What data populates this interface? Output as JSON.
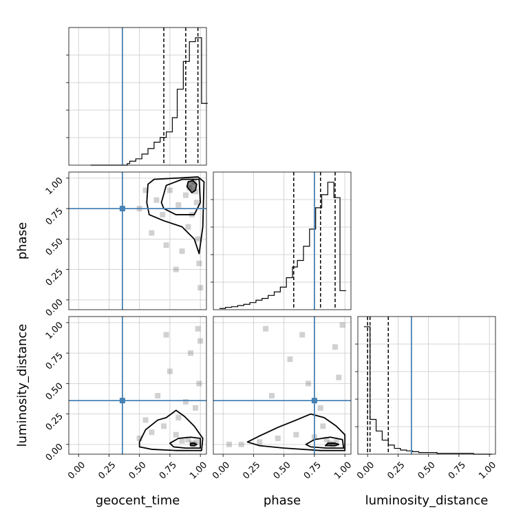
{
  "chart_data": {
    "type": "corner",
    "parameters": [
      "geocent_time",
      "phase",
      "luminosity_distance"
    ],
    "axis_labels": {
      "geocent_time": "geocent_time",
      "phase": "phase",
      "luminosity_distance": "luminosity_distance"
    },
    "range": [
      -0.08,
      1.05
    ],
    "ticks": [
      0.0,
      0.25,
      0.5,
      0.75,
      1.0
    ],
    "tick_labels": [
      "0.00",
      "0.25",
      "0.50",
      "0.75",
      "1.00"
    ],
    "truths": {
      "geocent_time": 0.36,
      "phase": 0.75,
      "luminosity_distance": 0.36
    },
    "truth_color": "#4682b4",
    "grid": true,
    "histograms": {
      "geocent_time": {
        "bin_edges": [
          0.1,
          0.2,
          0.3,
          0.4,
          0.42,
          0.47,
          0.52,
          0.57,
          0.62,
          0.67,
          0.72,
          0.77,
          0.81,
          0.86,
          0.91,
          0.96,
          1.01,
          1.06
        ],
        "counts": [
          0,
          0,
          0,
          2,
          5,
          8,
          14,
          21,
          29,
          35,
          42,
          60,
          96,
          131,
          156,
          161,
          78
        ],
        "quantiles": [
          0.7,
          0.88,
          0.98
        ]
      },
      "phase": {
        "bin_edges": [
          -0.03,
          0.02,
          0.07,
          0.12,
          0.17,
          0.22,
          0.27,
          0.32,
          0.37,
          0.42,
          0.47,
          0.52,
          0.57,
          0.61,
          0.66,
          0.71,
          0.76,
          0.81,
          0.86,
          0.91,
          0.96,
          1.01
        ],
        "counts": [
          2,
          4,
          5,
          7,
          9,
          12,
          16,
          19,
          24,
          30,
          38,
          54,
          72,
          83,
          107,
          136,
          172,
          194,
          215,
          189,
          32
        ],
        "quantiles": [
          0.58,
          0.8,
          0.92
        ]
      },
      "luminosity_distance": {
        "bin_edges": [
          -0.03,
          0.02,
          0.07,
          0.12,
          0.17,
          0.22,
          0.27,
          0.32,
          0.37,
          0.42,
          0.47,
          0.52,
          0.57,
          0.62,
          0.67,
          0.72,
          0.77,
          0.82,
          0.87,
          0.92,
          0.97,
          1.02
        ],
        "counts": [
          154,
          42,
          28,
          17,
          11,
          7,
          5,
          4,
          3,
          2,
          2,
          2,
          1,
          1,
          1,
          1,
          1,
          1,
          0,
          0,
          0
        ],
        "quantiles": [
          0.0,
          0.02,
          0.17
        ]
      }
    },
    "density_points": {
      "phase_vs_geocent_time": [
        [
          0.95,
          0.97
        ],
        [
          0.91,
          0.92
        ],
        [
          0.96,
          0.89
        ],
        [
          0.88,
          0.86
        ],
        [
          0.97,
          0.8
        ],
        [
          0.82,
          0.78
        ],
        [
          0.75,
          0.9
        ],
        [
          0.69,
          0.7
        ],
        [
          0.64,
          0.82
        ],
        [
          0.9,
          0.6
        ],
        [
          0.98,
          0.5
        ],
        [
          0.99,
          0.3
        ],
        [
          1.0,
          0.1
        ],
        [
          0.85,
          0.4
        ],
        [
          0.6,
          0.55
        ],
        [
          0.55,
          0.9
        ],
        [
          0.8,
          0.25
        ],
        [
          0.72,
          0.45
        ],
        [
          0.5,
          0.75
        ],
        [
          0.93,
          0.7
        ]
      ],
      "luminosity_distance_vs_geocent_time": [
        [
          0.95,
          0.0
        ],
        [
          0.93,
          0.01
        ],
        [
          0.97,
          0.02
        ],
        [
          0.9,
          0.04
        ],
        [
          0.85,
          0.03
        ],
        [
          0.8,
          0.08
        ],
        [
          0.7,
          0.15
        ],
        [
          0.6,
          0.1
        ],
        [
          0.99,
          0.5
        ],
        [
          0.98,
          0.95
        ],
        [
          0.88,
          0.35
        ],
        [
          0.75,
          0.6
        ],
        [
          0.65,
          0.4
        ],
        [
          0.55,
          0.2
        ],
        [
          0.92,
          0.75
        ],
        [
          0.82,
          0.22
        ],
        [
          1.0,
          0.85
        ],
        [
          0.72,
          0.9
        ],
        [
          0.5,
          0.05
        ],
        [
          0.96,
          0.3
        ]
      ],
      "luminosity_distance_vs_phase": [
        [
          0.9,
          0.0
        ],
        [
          0.88,
          0.01
        ],
        [
          0.93,
          0.02
        ],
        [
          0.85,
          0.04
        ],
        [
          0.75,
          0.06
        ],
        [
          0.6,
          0.08
        ],
        [
          0.45,
          0.05
        ],
        [
          0.3,
          0.02
        ],
        [
          0.15,
          0.0
        ],
        [
          0.05,
          0.0
        ],
        [
          0.8,
          0.3
        ],
        [
          0.95,
          0.55
        ],
        [
          0.7,
          0.5
        ],
        [
          0.55,
          0.7
        ],
        [
          0.98,
          0.98
        ],
        [
          0.4,
          0.4
        ],
        [
          0.65,
          0.9
        ],
        [
          0.82,
          0.15
        ],
        [
          0.92,
          0.8
        ],
        [
          0.35,
          0.95
        ]
      ]
    },
    "contours": {
      "phase_vs_geocent_time": [
        [
          [
            0.93,
            0.88
          ],
          [
            0.96,
            0.9
          ],
          [
            0.97,
            0.95
          ],
          [
            0.94,
            0.98
          ],
          [
            0.9,
            0.97
          ],
          [
            0.89,
            0.93
          ]
        ],
        [
          [
            0.68,
            0.8
          ],
          [
            0.72,
            0.94
          ],
          [
            0.85,
            0.99
          ],
          [
            0.99,
            0.99
          ],
          [
            1.0,
            0.8
          ],
          [
            0.95,
            0.7
          ],
          [
            0.8,
            0.7
          ],
          [
            0.7,
            0.75
          ]
        ],
        [
          [
            0.57,
            0.95
          ],
          [
            0.62,
            0.99
          ],
          [
            0.8,
            1.0
          ],
          [
            0.98,
            1.01
          ],
          [
            1.03,
            0.97
          ],
          [
            1.02,
            0.6
          ],
          [
            0.99,
            0.38
          ],
          [
            0.95,
            0.5
          ],
          [
            0.85,
            0.6
          ],
          [
            0.7,
            0.65
          ],
          [
            0.58,
            0.7
          ],
          [
            0.56,
            0.8
          ]
        ]
      ],
      "luminosity_distance_vs_geocent_time": [
        [
          [
            0.92,
            -0.01
          ],
          [
            0.95,
            -0.01
          ],
          [
            0.97,
            0.0
          ],
          [
            0.95,
            0.01
          ],
          [
            0.92,
            0.01
          ]
        ],
        [
          [
            0.75,
            0.01
          ],
          [
            0.82,
            0.05
          ],
          [
            0.92,
            0.06
          ],
          [
            1.0,
            0.05
          ],
          [
            1.0,
            -0.03
          ],
          [
            0.88,
            -0.03
          ],
          [
            0.78,
            -0.02
          ]
        ],
        [
          [
            0.5,
            0.02
          ],
          [
            0.55,
            0.12
          ],
          [
            0.65,
            0.2
          ],
          [
            0.72,
            0.22
          ],
          [
            0.8,
            0.28
          ],
          [
            0.87,
            0.23
          ],
          [
            0.95,
            0.15
          ],
          [
            1.02,
            0.05
          ],
          [
            1.01,
            -0.05
          ],
          [
            0.8,
            -0.05
          ],
          [
            0.6,
            -0.04
          ],
          [
            0.5,
            -0.02
          ]
        ]
      ],
      "luminosity_distance_vs_phase": [
        [
          [
            0.84,
            -0.01
          ],
          [
            0.92,
            -0.01
          ],
          [
            0.95,
            0.0
          ],
          [
            0.92,
            0.01
          ],
          [
            0.86,
            0.01
          ]
        ],
        [
          [
            0.68,
            0.0
          ],
          [
            0.75,
            0.04
          ],
          [
            0.88,
            0.06
          ],
          [
            0.98,
            0.04
          ],
          [
            0.99,
            -0.03
          ],
          [
            0.85,
            -0.03
          ],
          [
            0.72,
            -0.02
          ]
        ],
        [
          [
            0.2,
            0.02
          ],
          [
            0.3,
            0.07
          ],
          [
            0.45,
            0.14
          ],
          [
            0.6,
            0.2
          ],
          [
            0.72,
            0.25
          ],
          [
            0.83,
            0.22
          ],
          [
            0.93,
            0.15
          ],
          [
            1.0,
            0.08
          ],
          [
            1.0,
            -0.05
          ],
          [
            0.8,
            -0.05
          ],
          [
            0.5,
            -0.03
          ],
          [
            0.3,
            -0.01
          ]
        ]
      ]
    }
  }
}
